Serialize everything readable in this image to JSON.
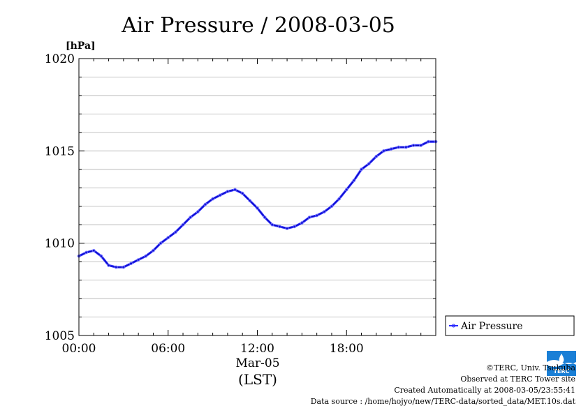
{
  "chart_data": {
    "type": "line",
    "title": "Air Pressure / 2008-03-05",
    "ylabel": "[hPa]",
    "xlabel": "Mar-05",
    "xlabel_sub": "(LST)",
    "ylim": [
      1005,
      1020
    ],
    "xlim": [
      0,
      24
    ],
    "y_ticks": [
      1005,
      1010,
      1015,
      1020
    ],
    "y_tick_labels": [
      "1005",
      "1010",
      "1015",
      "1020"
    ],
    "x_ticks": [
      0,
      6,
      12,
      18
    ],
    "x_tick_labels": [
      "00:00",
      "06:00",
      "12:00",
      "18:00"
    ],
    "grid": true,
    "legend_position": "right",
    "series": [
      {
        "name": "Air Pressure",
        "color": "#2b2bff",
        "x": [
          0,
          0.5,
          1,
          1.5,
          2,
          2.5,
          3,
          3.5,
          4,
          4.5,
          5,
          5.5,
          6,
          6.5,
          7,
          7.5,
          8,
          8.5,
          9,
          9.5,
          10,
          10.5,
          11,
          11.5,
          12,
          12.5,
          13,
          13.5,
          14,
          14.5,
          15,
          15.5,
          16,
          16.5,
          17,
          17.5,
          18,
          18.5,
          19,
          19.5,
          20,
          20.5,
          21,
          21.5,
          22,
          22.5,
          23,
          23.5,
          24
        ],
        "values": [
          1009.3,
          1009.5,
          1009.6,
          1009.3,
          1008.8,
          1008.7,
          1008.7,
          1008.9,
          1009.1,
          1009.3,
          1009.6,
          1010.0,
          1010.3,
          1010.6,
          1011.0,
          1011.4,
          1011.7,
          1012.1,
          1012.4,
          1012.6,
          1012.8,
          1012.9,
          1012.7,
          1012.3,
          1011.9,
          1011.4,
          1011.0,
          1010.9,
          1010.8,
          1010.9,
          1011.1,
          1011.4,
          1011.5,
          1011.7,
          1012.0,
          1012.4,
          1012.9,
          1013.4,
          1014.0,
          1014.3,
          1014.7,
          1015.0,
          1015.1,
          1015.2,
          1015.2,
          1015.3,
          1015.3,
          1015.5,
          1015.5
        ]
      }
    ]
  },
  "legend": {
    "label": "Air Pressure"
  },
  "credits": {
    "line1": "©TERC, Univ. Tsukuba",
    "line2": "Observed at TERC Tower site",
    "line3": "Created Automatically at 2008-03-05/23:55:41",
    "line4": "Data source : /home/hojyo/new/TERC-data/sorted_data/MET.10s.dat"
  },
  "logo": {
    "text": "TERC",
    "color": "#1a7fd6"
  }
}
